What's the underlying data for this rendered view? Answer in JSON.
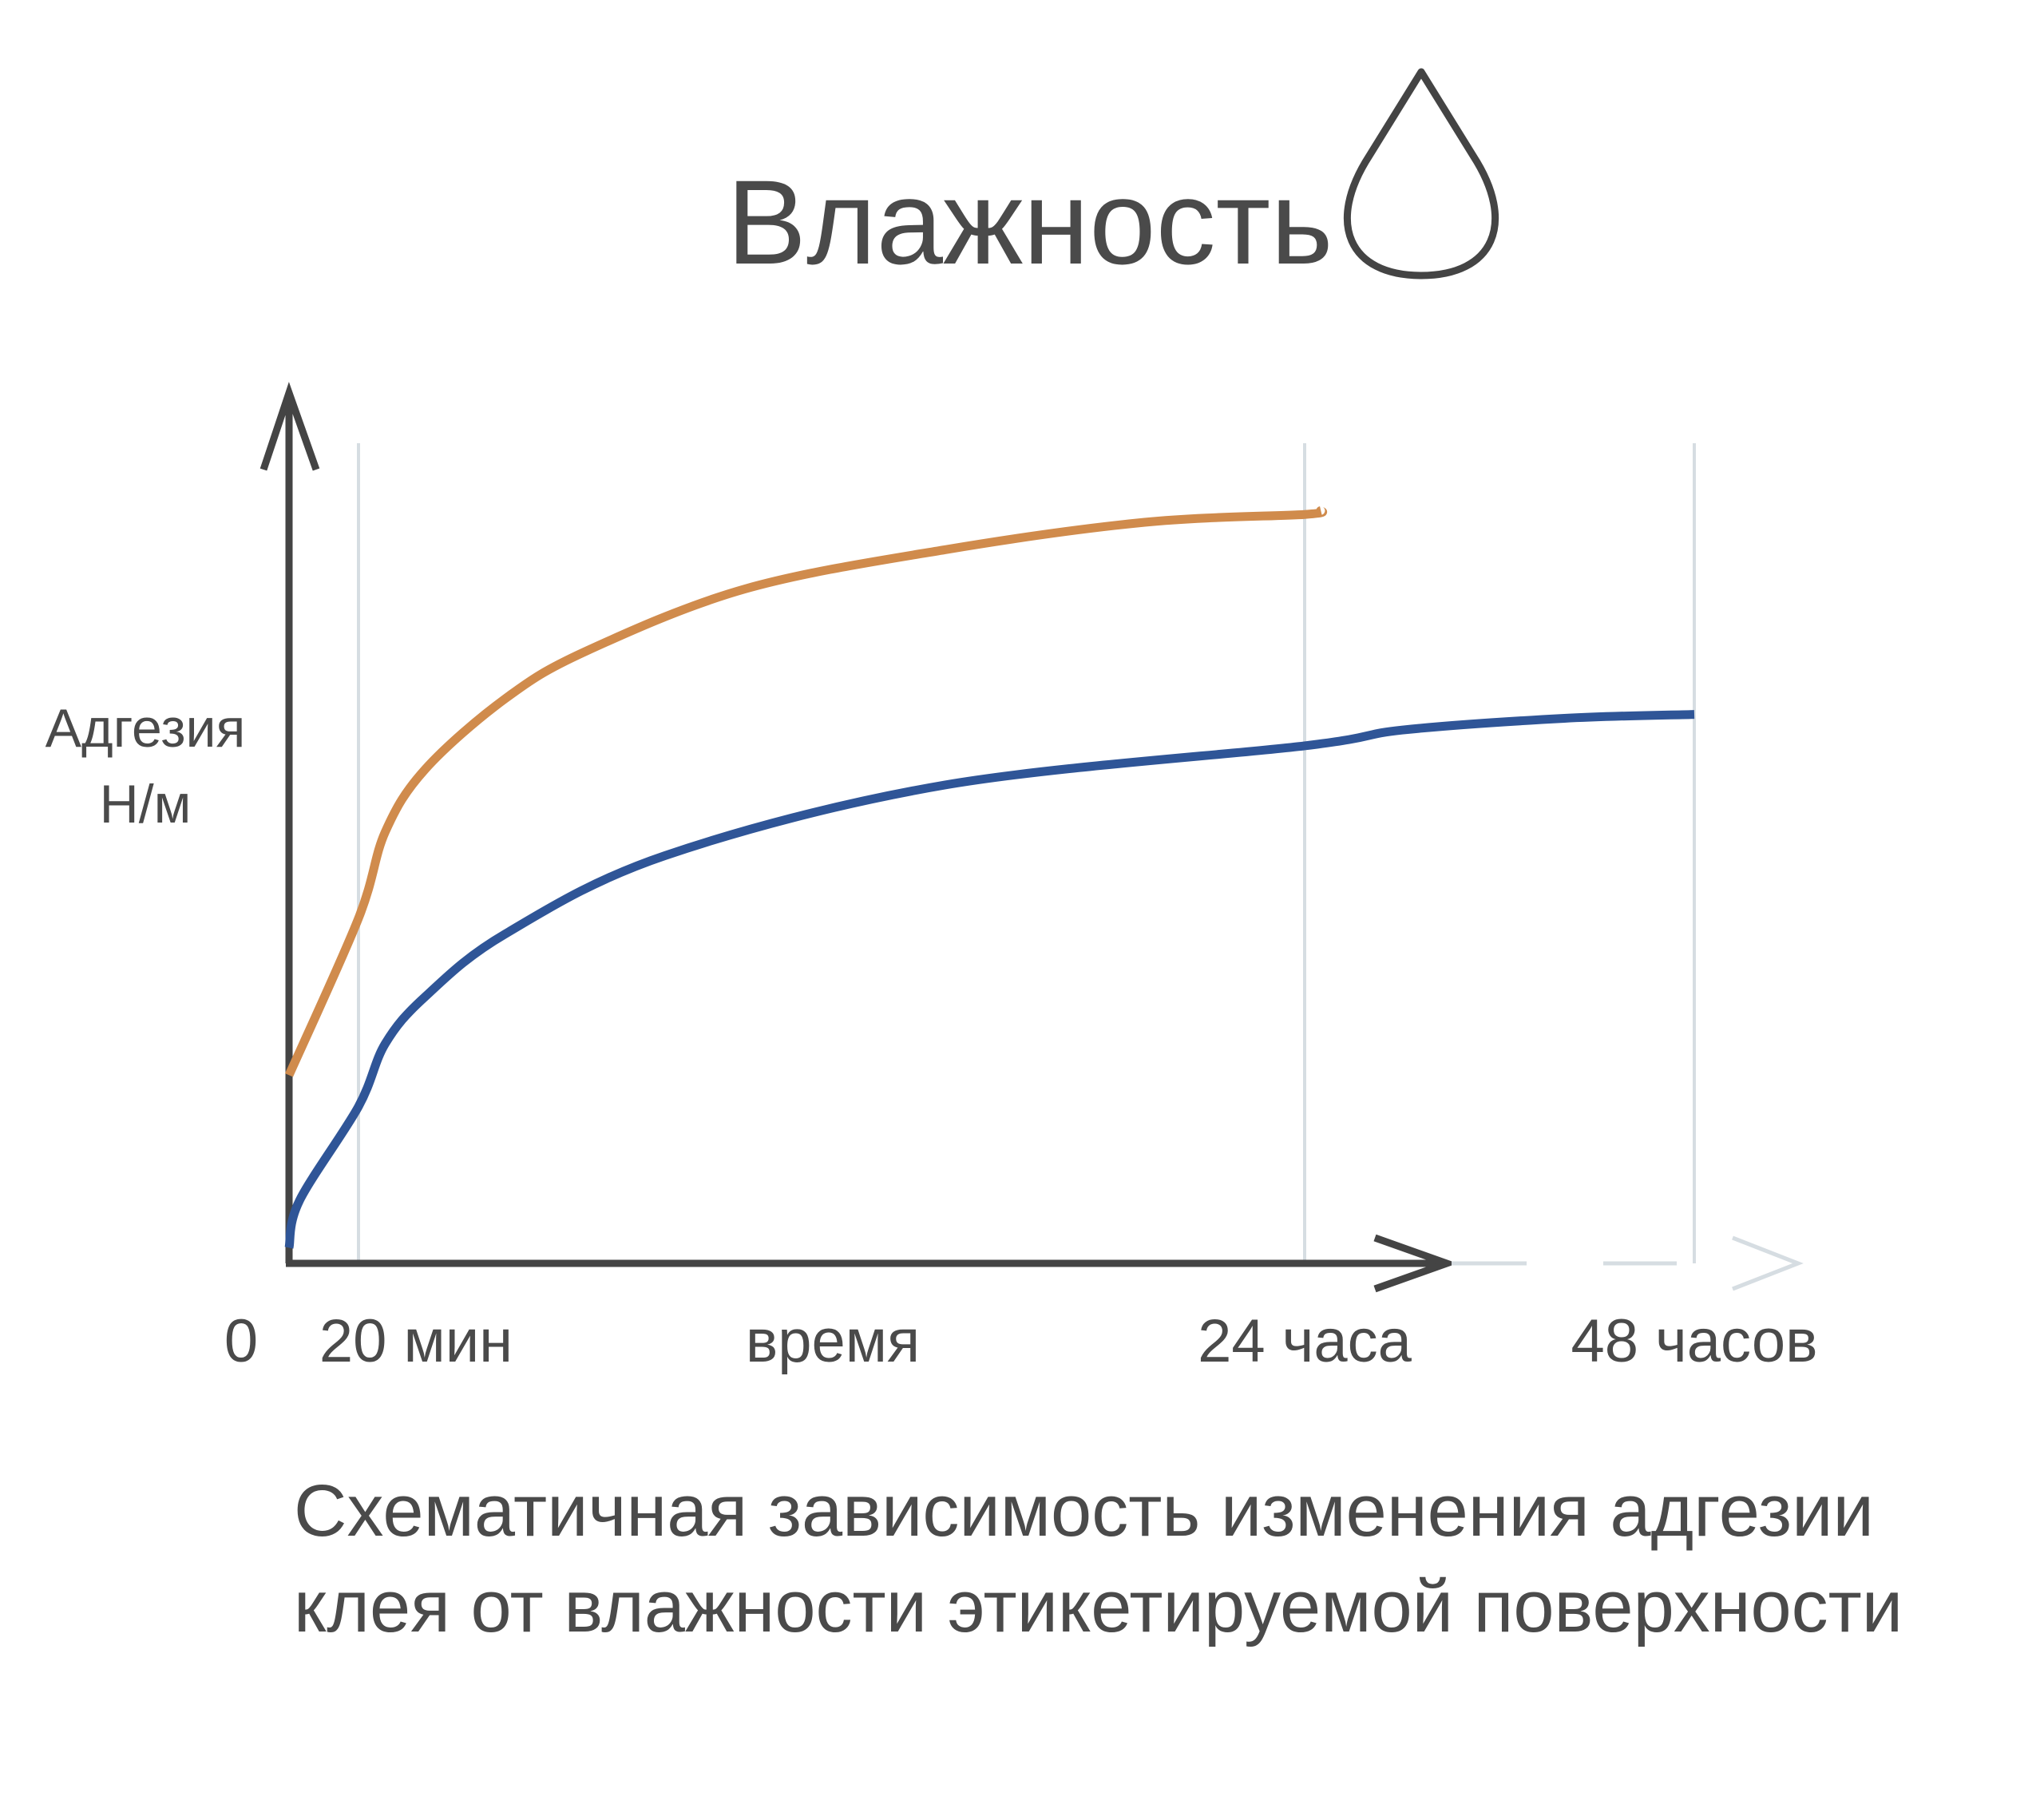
{
  "title": "Влажность",
  "title_icon": "water-drop-icon",
  "caption": {
    "line1": "Схематичная зависимость изменения адгезии",
    "line2": "клея от влажности этикетируемой поверхности"
  },
  "colors": {
    "axis": "#444444",
    "grid": "#d6dde2",
    "text": "#4a4a4a",
    "series_orange": "#d08b4c",
    "series_blue": "#2f5597"
  },
  "chart_data": {
    "type": "line",
    "title": "Влажность",
    "ylabel": [
      "Адгезия",
      "Н/м"
    ],
    "xlabel": "время",
    "x_ticks": [
      {
        "label": "0",
        "x": 0
      },
      {
        "label": "20 мин",
        "x": 0.333
      },
      {
        "label": "24 часа",
        "x": 24
      },
      {
        "label": "48 часов",
        "x": 48
      }
    ],
    "x_gridlines": [
      0.333,
      24,
      48
    ],
    "grid": true,
    "legend": "none",
    "series": [
      {
        "color": "#d08b4c",
        "x": [
          0,
          0.333,
          1,
          2,
          4,
          6,
          10,
          15,
          20,
          24,
          25
        ],
        "y": [
          24,
          44,
          55,
          63,
          72,
          78,
          86,
          91,
          94.5,
          95.5,
          96
        ]
      },
      {
        "color": "#2f5597",
        "x": [
          0,
          0.05,
          0.333,
          1,
          2,
          4,
          8,
          15,
          24,
          30,
          40,
          48
        ],
        "y": [
          2,
          8,
          20,
          28,
          34,
          42,
          52,
          61,
          66,
          68,
          69.5,
          70
        ]
      }
    ]
  }
}
